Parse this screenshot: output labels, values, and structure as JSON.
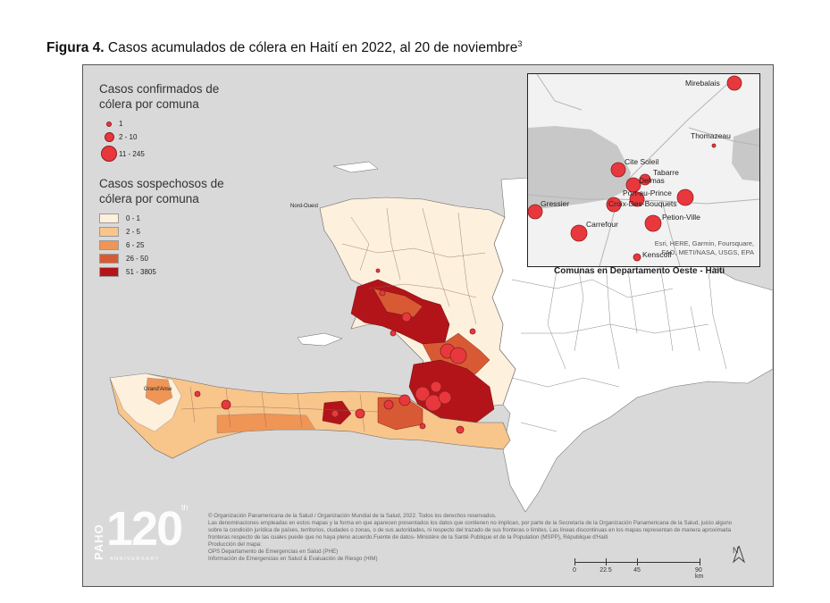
{
  "figure": {
    "label": "Figura 4.",
    "title": " Casos acumulados de cólera en Haití en 2022, al 20 de noviembre",
    "superscript": "3"
  },
  "legend_confirmed": {
    "title_line1": "Casos confirmados de",
    "title_line2": "cólera por comuna",
    "items": [
      {
        "label": "1",
        "size": 4
      },
      {
        "label": "2 - 10",
        "size": 9
      },
      {
        "label": "11 - 245",
        "size": 17
      }
    ]
  },
  "legend_suspected": {
    "title_line1": "Casos sospechosos de",
    "title_line2": "cólera por comuna",
    "items": [
      {
        "label": "0 - 1",
        "color": "#fdf0dc"
      },
      {
        "label": "2 - 5",
        "color": "#f8c58b"
      },
      {
        "label": "6 - 25",
        "color": "#ef9556"
      },
      {
        "label": "26 - 50",
        "color": "#d85a35"
      },
      {
        "label": "51 - 3805",
        "color": "#b3141a"
      }
    ]
  },
  "inset": {
    "caption": "Comunas en Departamento Oeste - Haiti",
    "places": [
      "Mirebalais",
      "Thomazeau",
      "Cite Soleil",
      "Tabarre",
      "Delmas",
      "Port-au-Prince",
      "Croix-Des-Bouquets",
      "Gressier",
      "Carrefour",
      "Petion-Ville",
      "Kenscoff"
    ],
    "attribution_line1": "Esri, HERE, Garmin, Foursquare,",
    "attribution_line2": "FAO, METI/NASA, USGS, EPA"
  },
  "map_labels": {
    "nord_ouest": "Nord-Ouest",
    "grand_anse": "Grand'Anse"
  },
  "footer": {
    "line1": "©  Organización Panamericana de la Salud / Organización Mundial de la Salud, 2022. Todos los derechos reservados.",
    "line2": "Las denominaciones empleadas en estos mapas y la forma en que aparecen presentados los datos que contienen no implican, por parte de la Secretaría de la Organización Panamericana de la Salud, juicio alguno sobre la condición jurídica de países,  territorios, ciudades o zonas, o de sus autoridades, ni respecto del trazado de sus fronteras o límites.  Las líneas discontinuas en los mapas representan de manera aproximada fronteras respecto de las cuales puede que no haya pleno acuerdo.Fuente de datos- Ministère de la Santé Publique et de la Population (MSPP), République d'Haiti",
    "line3": "Producción del mapa:",
    "line4": "OPS Departamento de Emergencias en Salud (PHE)",
    "line5": "Información de Emergencias en Salud & Evaluación de Riesgo (HIM)"
  },
  "scalebar": {
    "ticks": [
      "0",
      "22.5",
      "45",
      "90 km"
    ]
  },
  "north_label": "N",
  "logo": {
    "paho": "PAHO",
    "number": "120",
    "superscript": "th",
    "anniversary": "ANNIVERSARY"
  },
  "colors": {
    "ocean": "#d9d9d9",
    "land_other": "#ffffff",
    "dot": "#e8383d"
  }
}
